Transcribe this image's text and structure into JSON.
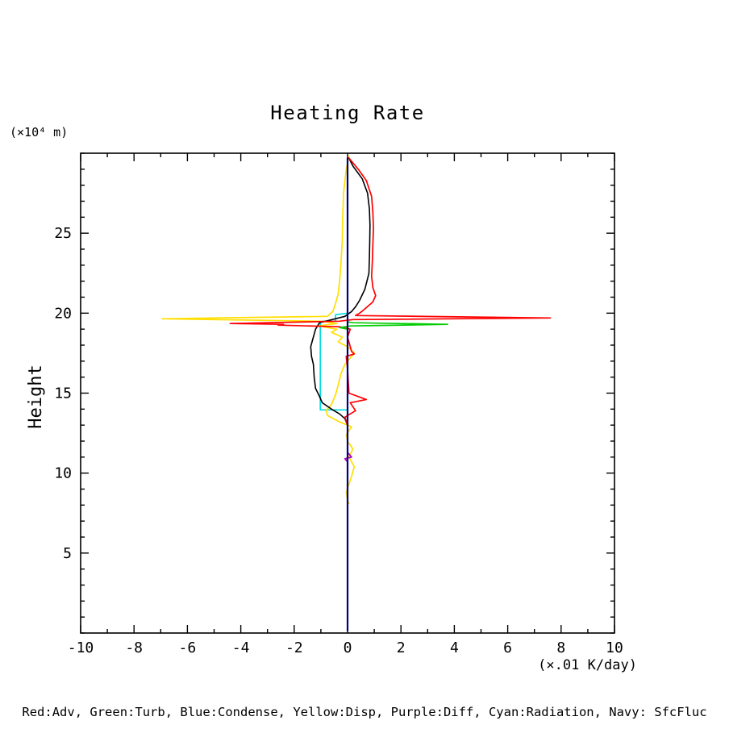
{
  "chart": {
    "title": "Heating Rate",
    "y_unit": "(×10⁴ m)",
    "ylabel": "Height",
    "x_unit": "(×.01 K/day)",
    "legend": "Red:Adv, Green:Turb, Blue:Condense, Yellow:Disp, Purple:Diff, Cyan:Radiation, Navy: SfcFluc"
  },
  "chart_data": {
    "type": "line",
    "title": "Heating Rate",
    "xlabel": "(×.01 K/day)",
    "ylabel": "Height (×10⁴ m)",
    "xlim": [
      -10,
      10
    ],
    "ylim": [
      0,
      30
    ],
    "xticks": [
      -10,
      -8,
      -6,
      -4,
      -2,
      0,
      2,
      4,
      6,
      8,
      10
    ],
    "yticks": [
      5,
      10,
      15,
      20,
      25
    ],
    "minor_tick_step_x": 1,
    "minor_tick_step_y": 1,
    "grid": false,
    "legend_position": "bottom",
    "frame_color": "#000000",
    "series": [
      {
        "name": "Condense",
        "color": "#0000ff",
        "width": 1.4,
        "points": [
          [
            0,
            0.2
          ],
          [
            0,
            29.6
          ]
        ]
      },
      {
        "name": "Radiation",
        "color": "#00dde0",
        "width": 1.7,
        "points": [
          [
            0,
            29.5
          ],
          [
            0,
            20.0
          ],
          [
            -0.45,
            19.9
          ],
          [
            -0.45,
            19.5
          ],
          [
            -1.02,
            19.5
          ],
          [
            -1.02,
            13.95
          ],
          [
            0,
            13.95
          ],
          [
            0,
            0.3
          ]
        ]
      },
      {
        "name": "Disp",
        "color": "#ffdf00",
        "width": 1.7,
        "points": [
          [
            0.05,
            29.8
          ],
          [
            -0.05,
            29.0
          ],
          [
            -0.15,
            27.5
          ],
          [
            -0.18,
            26.0
          ],
          [
            -0.2,
            24.5
          ],
          [
            -0.25,
            23.0
          ],
          [
            -0.3,
            22.0
          ],
          [
            -0.35,
            21.2
          ],
          [
            -0.45,
            20.6
          ],
          [
            -0.55,
            20.1
          ],
          [
            -0.75,
            19.8
          ],
          [
            -6.95,
            19.65
          ],
          [
            -1.0,
            19.5
          ],
          [
            -0.4,
            19.35
          ],
          [
            -1.1,
            19.2
          ],
          [
            -0.4,
            19.0
          ],
          [
            -0.6,
            18.8
          ],
          [
            -0.2,
            18.5
          ],
          [
            -0.35,
            18.2
          ],
          [
            0.0,
            17.9
          ],
          [
            0.25,
            17.5
          ],
          [
            0.1,
            17.2
          ],
          [
            -0.1,
            16.8
          ],
          [
            -0.25,
            16.2
          ],
          [
            -0.35,
            15.5
          ],
          [
            -0.45,
            14.9
          ],
          [
            -0.6,
            14.3
          ],
          [
            -0.8,
            13.9
          ],
          [
            -0.75,
            13.6
          ],
          [
            -0.3,
            13.2
          ],
          [
            0.15,
            12.9
          ],
          [
            -0.05,
            12.4
          ],
          [
            0.0,
            12.0
          ],
          [
            0.2,
            11.5
          ],
          [
            0.05,
            11.0
          ],
          [
            0.25,
            10.4
          ],
          [
            0.15,
            9.8
          ],
          [
            0.05,
            9.3
          ],
          [
            -0.05,
            8.8
          ],
          [
            0.0,
            8.3
          ],
          [
            0.05,
            8.1
          ]
        ]
      },
      {
        "name": "black",
        "color": "#000000",
        "width": 1.6,
        "points": [
          [
            0.05,
            29.7
          ],
          [
            0.2,
            29.2
          ],
          [
            0.55,
            28.4
          ],
          [
            0.75,
            27.5
          ],
          [
            0.82,
            26.5
          ],
          [
            0.84,
            25.5
          ],
          [
            0.83,
            24.5
          ],
          [
            0.82,
            23.5
          ],
          [
            0.8,
            22.5
          ],
          [
            0.65,
            21.5
          ],
          [
            0.45,
            20.8
          ],
          [
            0.3,
            20.4
          ],
          [
            0.15,
            20.1
          ],
          [
            -0.1,
            19.8
          ],
          [
            -0.7,
            19.55
          ],
          [
            -1.05,
            19.4
          ],
          [
            -1.2,
            19.0
          ],
          [
            -1.3,
            18.4
          ],
          [
            -1.38,
            17.9
          ],
          [
            -1.35,
            17.3
          ],
          [
            -1.28,
            16.8
          ],
          [
            -1.25,
            16.0
          ],
          [
            -1.2,
            15.3
          ],
          [
            -1.05,
            14.8
          ],
          [
            -0.95,
            14.4
          ],
          [
            -0.6,
            14.0
          ],
          [
            -0.3,
            13.7
          ],
          [
            -0.1,
            13.4
          ],
          [
            0,
            13.0
          ],
          [
            0,
            0.3
          ]
        ]
      },
      {
        "name": "Adv",
        "color": "#ff0000",
        "width": 1.7,
        "points": [
          [
            0.05,
            29.7
          ],
          [
            0.4,
            29.0
          ],
          [
            0.7,
            28.3
          ],
          [
            0.9,
            27.3
          ],
          [
            0.95,
            26.3
          ],
          [
            0.97,
            25.3
          ],
          [
            0.95,
            24.3
          ],
          [
            0.93,
            23.3
          ],
          [
            0.9,
            22.3
          ],
          [
            0.95,
            21.6
          ],
          [
            1.05,
            21.1
          ],
          [
            0.95,
            20.7
          ],
          [
            0.6,
            20.2
          ],
          [
            0.45,
            20.0
          ],
          [
            0.3,
            19.85
          ],
          [
            7.6,
            19.7
          ],
          [
            0.2,
            19.6
          ],
          [
            -0.3,
            19.5
          ],
          [
            -4.4,
            19.35
          ],
          [
            -2.4,
            19.3
          ],
          [
            -2.6,
            19.25
          ],
          [
            -0.3,
            19.15
          ],
          [
            0.1,
            19.0
          ],
          [
            0,
            18.5
          ],
          [
            0.15,
            17.6
          ],
          [
            0.25,
            17.45
          ],
          [
            -0.05,
            17.3
          ],
          [
            0,
            16.5
          ],
          [
            0.05,
            15.0
          ],
          [
            0.7,
            14.6
          ],
          [
            0.1,
            14.4
          ],
          [
            0.3,
            13.9
          ],
          [
            -0.1,
            13.5
          ],
          [
            0,
            13.0
          ],
          [
            0,
            0.3
          ]
        ]
      },
      {
        "name": "Turb",
        "color": "#00cc00",
        "width": 1.7,
        "points": [
          [
            0,
            29.5
          ],
          [
            0,
            19.45
          ],
          [
            0.2,
            19.4
          ],
          [
            3.75,
            19.3
          ],
          [
            0.1,
            19.2
          ],
          [
            -0.3,
            19.1
          ],
          [
            0,
            19.0
          ],
          [
            0,
            0.3
          ]
        ]
      },
      {
        "name": "Diff",
        "color": "#b000c0",
        "width": 1.7,
        "points": [
          [
            0,
            11.3
          ],
          [
            0.15,
            11.0
          ],
          [
            -0.1,
            10.9
          ],
          [
            0,
            10.7
          ]
        ]
      },
      {
        "name": "SfcFluc",
        "color": "#000080",
        "width": 2.2,
        "points": [
          [
            0,
            0.15
          ],
          [
            0,
            29.7
          ]
        ]
      }
    ]
  }
}
